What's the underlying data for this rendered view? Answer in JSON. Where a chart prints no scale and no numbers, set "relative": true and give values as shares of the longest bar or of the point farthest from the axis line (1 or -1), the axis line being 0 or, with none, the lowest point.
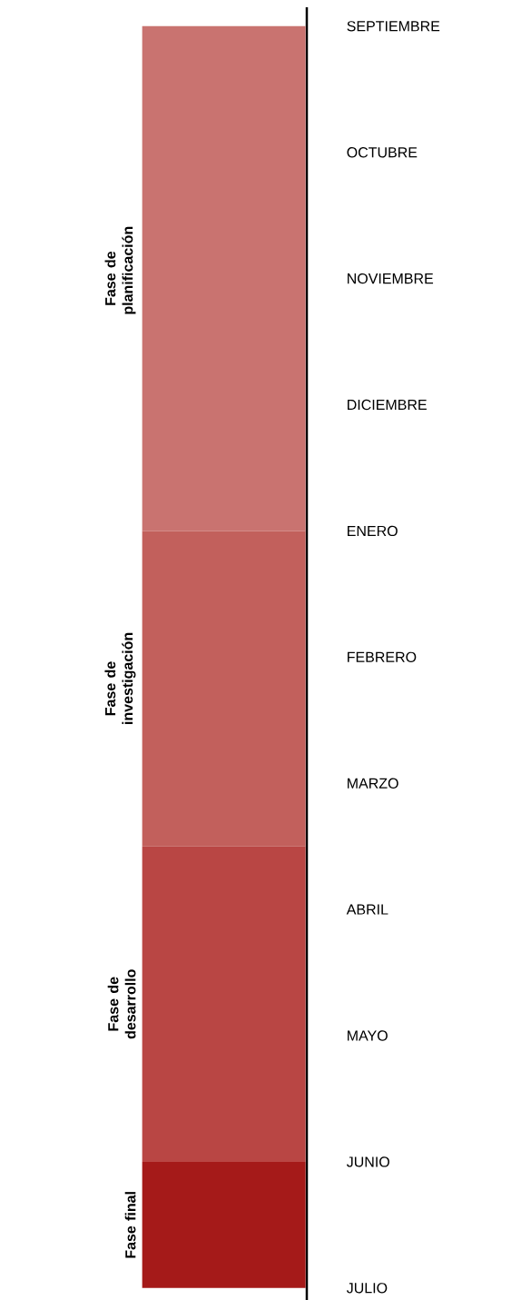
{
  "chart_data": {
    "type": "bar",
    "stacked": true,
    "relative": true,
    "categories": [
      null
    ],
    "series": [
      {
        "name": "Fase final",
        "color": "#a51a19",
        "values": [
          0.1
        ]
      },
      {
        "name": "Fase de desarrollo",
        "color": "#b94644",
        "values": [
          0.25
        ]
      },
      {
        "name": "Fase de investigación",
        "color": "#c2605c",
        "values": [
          0.25
        ]
      },
      {
        "name": "Fase de planificación",
        "color": "#c97370",
        "values": [
          0.4
        ]
      }
    ],
    "annotations": [
      "SEPTIEMBRE",
      "OCTUBRE",
      "NOVIEMBRE",
      "DICIEMBRE",
      "ENERO",
      "FEBRERO",
      "MARZO",
      "ABRIL",
      "MAYO",
      "JUNIO",
      "JULIO"
    ],
    "legend": false
  }
}
